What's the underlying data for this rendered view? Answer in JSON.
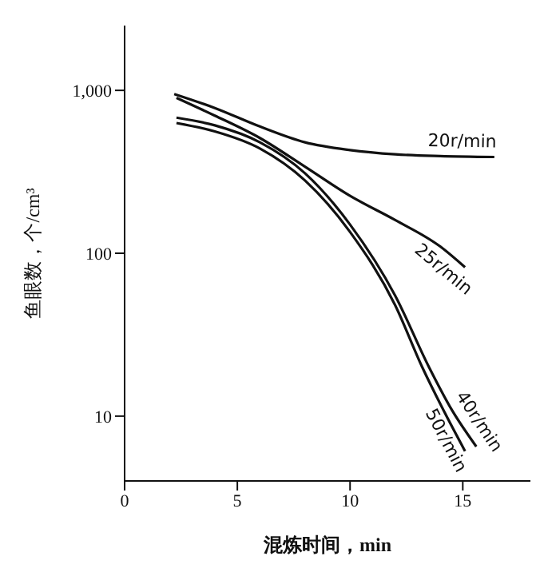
{
  "chart_data": {
    "type": "line",
    "xlabel": "混炼时间，min",
    "ylabel": "鱼眼数，个/cm³",
    "log": "y",
    "xlim": [
      0,
      18
    ],
    "xticks": [
      0,
      5,
      10,
      15
    ],
    "ylim": [
      4,
      2500
    ],
    "yticks": [
      10,
      100,
      {
        "value": 1000,
        "label": "1,000"
      }
    ],
    "grid": false,
    "legend": false,
    "marker": "none",
    "line_style": "solid",
    "series": [
      {
        "name": "20r/min",
        "color": "#111111",
        "x": [
          2.2,
          4,
          6,
          8,
          10,
          12,
          14,
          16.4
        ],
        "values": [
          950,
          780,
          600,
          480,
          430,
          405,
          395,
          390
        ]
      },
      {
        "name": "25r/min",
        "color": "#111111",
        "x": [
          2.3,
          4,
          6,
          8,
          10,
          12,
          14,
          15.1
        ],
        "values": [
          900,
          700,
          510,
          340,
          225,
          160,
          110,
          82
        ]
      },
      {
        "name": "40r/min",
        "color": "#111111",
        "x": [
          2.3,
          4,
          6,
          8,
          10,
          12,
          13.5,
          14.5,
          15.6
        ],
        "values": [
          680,
          610,
          480,
          310,
          150,
          55,
          20,
          11,
          6.5
        ]
      },
      {
        "name": "50r/min",
        "color": "#111111",
        "x": [
          2.3,
          4,
          6,
          8,
          10,
          12,
          13.2,
          14.2,
          15.1
        ],
        "values": [
          630,
          560,
          440,
          280,
          135,
          48,
          20,
          10.5,
          6.1
        ]
      }
    ]
  }
}
